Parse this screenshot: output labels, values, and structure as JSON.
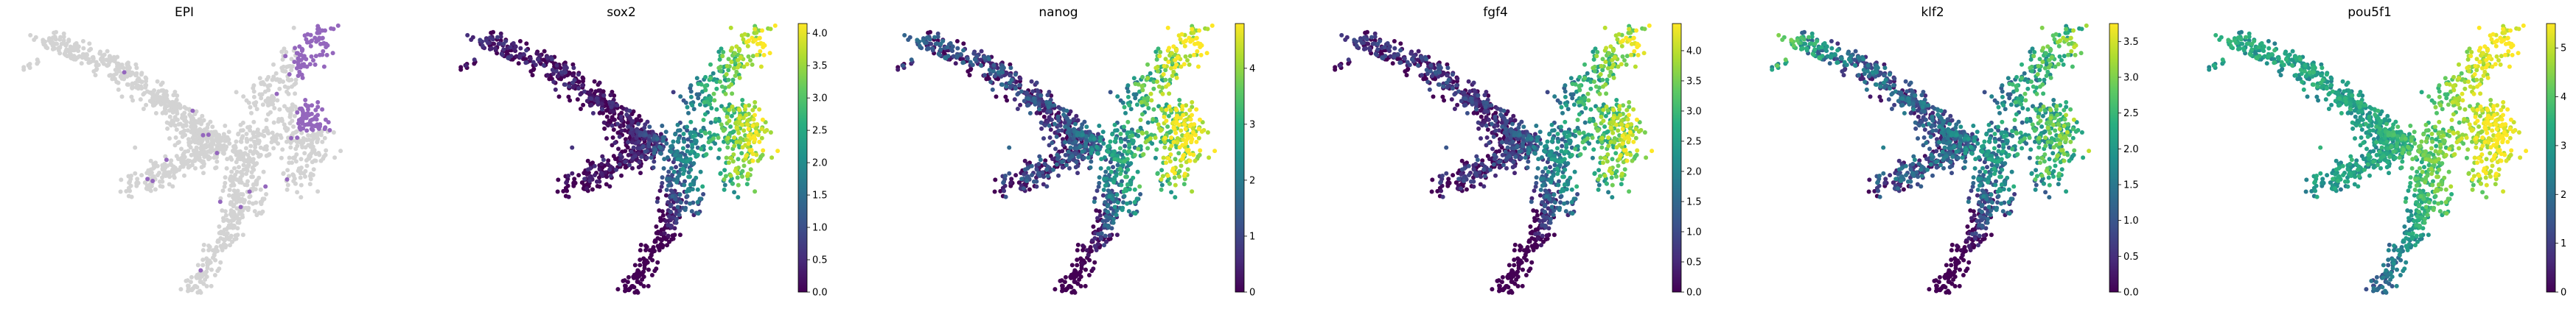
{
  "chart_data": [
    {
      "type": "scatter",
      "title": "EPI",
      "mode": "categorical",
      "colors": {
        "in": "#9467bd",
        "out": "#d3d3d3"
      },
      "legend": "none"
    },
    {
      "type": "scatter",
      "title": "sox2",
      "mode": "continuous",
      "colormap": "viridis",
      "colorbar": {
        "range": [
          0,
          4.15
        ],
        "ticks": [
          "0.0",
          "0.5",
          "1.0",
          "1.5",
          "2.0",
          "2.5",
          "3.0",
          "3.5",
          "4.0"
        ]
      }
    },
    {
      "type": "scatter",
      "title": "nanog",
      "mode": "continuous",
      "colormap": "viridis",
      "colorbar": {
        "range": [
          0,
          4.8
        ],
        "ticks": [
          "0",
          "1",
          "2",
          "3",
          "4"
        ]
      }
    },
    {
      "type": "scatter",
      "title": "fgf4",
      "mode": "continuous",
      "colormap": "viridis",
      "colorbar": {
        "range": [
          0,
          4.45
        ],
        "ticks": [
          "0.0",
          "0.5",
          "1.0",
          "1.5",
          "2.0",
          "2.5",
          "3.0",
          "3.5",
          "4.0"
        ]
      }
    },
    {
      "type": "scatter",
      "title": "klf2",
      "mode": "continuous",
      "colormap": "viridis",
      "colorbar": {
        "range": [
          0,
          3.75
        ],
        "ticks": [
          "0.0",
          "0.5",
          "1.0",
          "1.5",
          "2.0",
          "2.5",
          "3.0",
          "3.5"
        ]
      }
    },
    {
      "type": "scatter",
      "title": "pou5f1",
      "mode": "continuous",
      "colormap": "viridis",
      "colorbar": {
        "range": [
          0,
          5.5
        ],
        "ticks": [
          "0",
          "1",
          "2",
          "3",
          "4",
          "5"
        ]
      }
    }
  ]
}
